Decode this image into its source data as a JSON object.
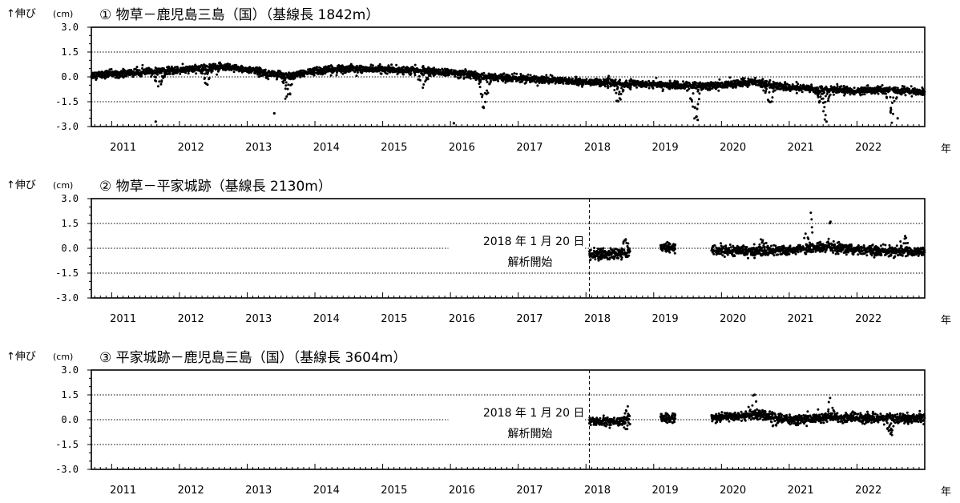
{
  "y_axis_label": "↑伸び",
  "y_axis_unit": "(cm)",
  "x_unit_label": "年",
  "annotation": {
    "line1": "2018 年 1 月 20 日",
    "line2": "解析開始",
    "date": 2018.05
  },
  "chart_data": [
    {
      "type": "scatter",
      "title": "① 物草－鹿児島三島（国）（基線長 1842m）",
      "ylabel": "↑伸び (cm)",
      "xlabel": "年",
      "ylim": [
        -3.0,
        3.0
      ],
      "yticks": [
        "3.0",
        "1.5",
        "0.0",
        "-1.5",
        "-3.0"
      ],
      "xlim": [
        2010.7,
        2023.0
      ],
      "xticks": [
        "2011",
        "2012",
        "2013",
        "2014",
        "2015",
        "2016",
        "2017",
        "2018",
        "2019",
        "2020",
        "2021",
        "2022"
      ],
      "grid": "horizontal dotted at 1.5, 0.0, -1.5",
      "data_start": 2010.7,
      "trend": [
        [
          2010.7,
          0.1
        ],
        [
          2011.5,
          0.3
        ],
        [
          2012.0,
          0.4
        ],
        [
          2012.5,
          0.6
        ],
        [
          2013.0,
          0.45
        ],
        [
          2013.6,
          0.05
        ],
        [
          2014.0,
          0.35
        ],
        [
          2014.5,
          0.5
        ],
        [
          2015.0,
          0.45
        ],
        [
          2015.5,
          0.4
        ],
        [
          2016.0,
          0.25
        ],
        [
          2016.5,
          0.0
        ],
        [
          2017.0,
          -0.1
        ],
        [
          2017.5,
          -0.2
        ],
        [
          2018.0,
          -0.3
        ],
        [
          2018.5,
          -0.4
        ],
        [
          2019.0,
          -0.45
        ],
        [
          2019.5,
          -0.55
        ],
        [
          2020.0,
          -0.5
        ],
        [
          2020.5,
          -0.3
        ],
        [
          2021.0,
          -0.65
        ],
        [
          2021.5,
          -0.75
        ],
        [
          2022.0,
          -0.85
        ],
        [
          2022.5,
          -0.75
        ],
        [
          2023.0,
          -0.95
        ]
      ],
      "dips": [
        [
          2011.7,
          -1.6
        ],
        [
          2012.4,
          -1.2
        ],
        [
          2013.6,
          -1.8
        ],
        [
          2015.6,
          -1.4
        ],
        [
          2016.5,
          -2.2
        ],
        [
          2018.5,
          -1.6
        ],
        [
          2019.6,
          -2.4
        ],
        [
          2020.7,
          -1.3
        ],
        [
          2021.5,
          -2.3
        ],
        [
          2022.5,
          -2.0
        ]
      ],
      "outliers": [
        [
          2011.65,
          -2.7
        ],
        [
          2013.4,
          -2.2
        ],
        [
          2016.05,
          -2.8
        ],
        [
          2019.65,
          -2.6
        ],
        [
          2021.55,
          -2.7
        ],
        [
          2022.6,
          -2.5
        ]
      ],
      "gaps": [],
      "noise": 0.22
    },
    {
      "type": "scatter",
      "title": "② 物草－平家城跡（基線長 2130m）",
      "ylabel": "↑伸び (cm)",
      "xlabel": "年",
      "ylim": [
        -3.0,
        3.0
      ],
      "yticks": [
        "3.0",
        "1.5",
        "0.0",
        "-1.5",
        "-3.0"
      ],
      "xlim": [
        2010.7,
        2023.0
      ],
      "xticks": [
        "2011",
        "2012",
        "2013",
        "2014",
        "2015",
        "2016",
        "2017",
        "2018",
        "2019",
        "2020",
        "2021",
        "2022"
      ],
      "grid": "horizontal dotted at 1.5, 0.0, -1.5",
      "data_start": 2018.05,
      "trend": [
        [
          2018.05,
          -0.4
        ],
        [
          2018.6,
          -0.3
        ],
        [
          2019.0,
          0.0
        ],
        [
          2019.3,
          0.0
        ],
        [
          2019.9,
          -0.1
        ],
        [
          2020.5,
          -0.2
        ],
        [
          2021.0,
          -0.1
        ],
        [
          2021.5,
          0.05
        ],
        [
          2022.0,
          -0.1
        ],
        [
          2022.5,
          -0.2
        ],
        [
          2023.0,
          -0.2
        ]
      ],
      "dips": [],
      "spikes": [
        [
          2018.6,
          1.2
        ],
        [
          2020.6,
          1.0
        ],
        [
          2021.3,
          2.2
        ],
        [
          2021.6,
          1.6
        ],
        [
          2022.7,
          1.2
        ]
      ],
      "gaps": [
        [
          2018.65,
          2019.1
        ],
        [
          2019.32,
          2019.85
        ]
      ],
      "noise": 0.3
    },
    {
      "type": "scatter",
      "title": "③ 平家城跡－鹿児島三島（国）（基線長 3604m）",
      "ylabel": "↑伸び (cm)",
      "xlabel": "年",
      "ylim": [
        -3.0,
        3.0
      ],
      "yticks": [
        "3.0",
        "1.5",
        "0.0",
        "-1.5",
        "-3.0"
      ],
      "xlim": [
        2010.7,
        2023.0
      ],
      "xticks": [
        "2011",
        "2012",
        "2013",
        "2014",
        "2015",
        "2016",
        "2017",
        "2018",
        "2019",
        "2020",
        "2021",
        "2022"
      ],
      "grid": "horizontal dotted at 1.5, 0.0, -1.5",
      "data_start": 2018.05,
      "trend": [
        [
          2018.05,
          -0.1
        ],
        [
          2018.6,
          -0.1
        ],
        [
          2019.0,
          0.1
        ],
        [
          2019.3,
          0.1
        ],
        [
          2019.9,
          0.1
        ],
        [
          2020.5,
          0.3
        ],
        [
          2021.0,
          0.0
        ],
        [
          2021.5,
          0.1
        ],
        [
          2022.0,
          0.1
        ],
        [
          2022.5,
          0.1
        ],
        [
          2023.0,
          0.1
        ]
      ],
      "dips": [
        [
          2018.6,
          -0.6
        ],
        [
          2020.8,
          -0.6
        ],
        [
          2022.5,
          -1.1
        ]
      ],
      "spikes": [
        [
          2018.6,
          1.1
        ],
        [
          2020.5,
          1.5
        ],
        [
          2021.6,
          1.2
        ]
      ],
      "gaps": [
        [
          2018.65,
          2019.1
        ],
        [
          2019.32,
          2019.85
        ]
      ],
      "noise": 0.28
    }
  ]
}
